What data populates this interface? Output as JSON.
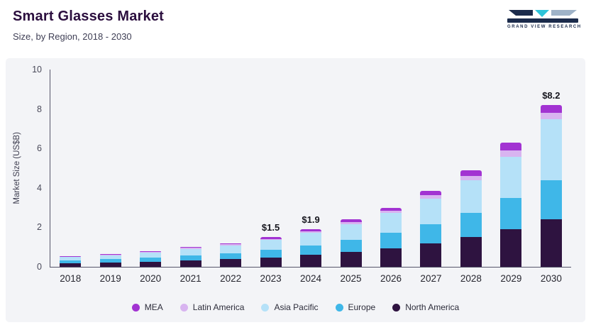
{
  "logo": {
    "text": "GRAND VIEW RESEARCH"
  },
  "chart_data": {
    "type": "bar",
    "stacked": true,
    "title": "Smart Glasses Market",
    "subtitle": "Size, by Region, 2018 - 2030",
    "ylabel": "Market Size (US$B)",
    "ylim": [
      0,
      10
    ],
    "yticks": [
      0,
      2,
      4,
      6,
      8,
      10
    ],
    "grid": false,
    "legend_position": "bottom",
    "categories": [
      "2018",
      "2019",
      "2020",
      "2021",
      "2022",
      "2023",
      "2024",
      "2025",
      "2026",
      "2027",
      "2028",
      "2029",
      "2030"
    ],
    "series": [
      {
        "name": "North America",
        "color": "#2e1340",
        "values": [
          0.17,
          0.21,
          0.26,
          0.32,
          0.38,
          0.47,
          0.6,
          0.75,
          0.95,
          1.2,
          1.52,
          1.92,
          2.4
        ]
      },
      {
        "name": "Europe",
        "color": "#3fb7e8",
        "values": [
          0.14,
          0.17,
          0.21,
          0.26,
          0.31,
          0.38,
          0.48,
          0.6,
          0.76,
          0.97,
          1.23,
          1.56,
          2.0
        ]
      },
      {
        "name": "Asia Pacific",
        "color": "#b5e1f8",
        "values": [
          0.18,
          0.21,
          0.26,
          0.33,
          0.4,
          0.5,
          0.64,
          0.8,
          1.02,
          1.3,
          1.65,
          2.1,
          3.1
        ]
      },
      {
        "name": "Latin America",
        "color": "#d8b4f0",
        "values": [
          0.03,
          0.03,
          0.035,
          0.045,
          0.055,
          0.07,
          0.09,
          0.11,
          0.13,
          0.17,
          0.22,
          0.31,
          0.3
        ]
      },
      {
        "name": "MEA",
        "color": "#a233d2",
        "values": [
          0.03,
          0.03,
          0.035,
          0.045,
          0.055,
          0.08,
          0.09,
          0.14,
          0.14,
          0.21,
          0.28,
          0.41,
          0.4
        ]
      }
    ],
    "totals_labels": {
      "2023": "$1.5",
      "2024": "$1.9",
      "2030": "$8.2"
    },
    "legend": [
      "MEA",
      "Latin America",
      "Asia Pacific",
      "Europe",
      "North America"
    ]
  }
}
